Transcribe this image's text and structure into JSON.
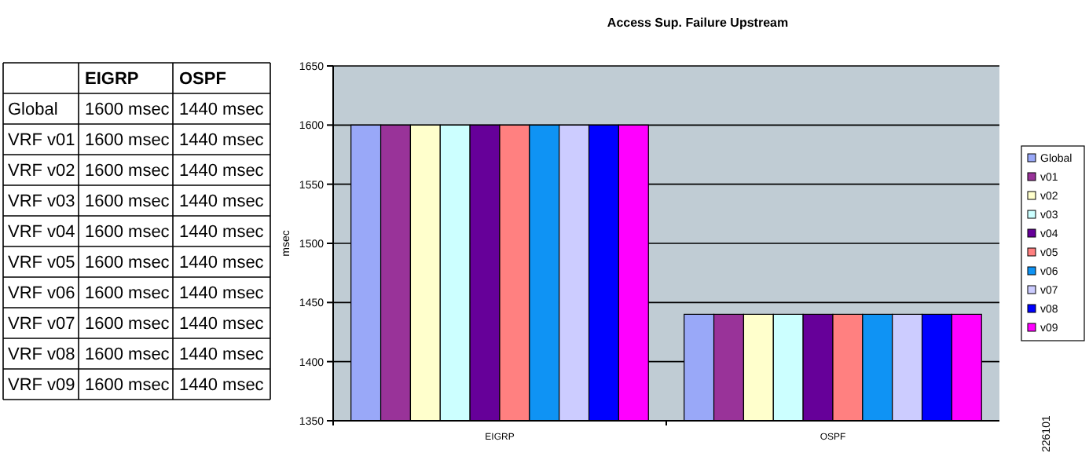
{
  "chart_data": [
    {
      "type": "other",
      "categories": [
        "EIGRP",
        "OSPF"
      ],
      "y_categories": [
        "Global",
        "VRF v01",
        "VRF v02",
        "VRF v03",
        "VRF v04",
        "VRF v05",
        "VRF v06",
        "VRF v07",
        "VRF v08",
        "VRF v09"
      ],
      "cell_labels": [
        [
          "1600 msec",
          "1440 msec"
        ],
        [
          "1600 msec",
          "1440 msec"
        ],
        [
          "1600 msec",
          "1440 msec"
        ],
        [
          "1600 msec",
          "1440 msec"
        ],
        [
          "1600 msec",
          "1440 msec"
        ],
        [
          "1600 msec",
          "1440 msec"
        ],
        [
          "1600 msec",
          "1440 msec"
        ],
        [
          "1600 msec",
          "1440 msec"
        ],
        [
          "1600 msec",
          "1440 msec"
        ],
        [
          "1600 msec",
          "1440 msec"
        ]
      ]
    },
    {
      "type": "bar",
      "title": "Access Sup. Failure Upstream",
      "ylabel": "msec",
      "categories": [
        "EIGRP",
        "OSPF"
      ],
      "series": [
        {
          "name": "Global",
          "color": "#99a8f8",
          "values": [
            1600,
            1440
          ]
        },
        {
          "name": "v01",
          "color": "#993399",
          "values": [
            1600,
            1440
          ]
        },
        {
          "name": "v02",
          "color": "#ffffcc",
          "values": [
            1600,
            1440
          ]
        },
        {
          "name": "v03",
          "color": "#ccffff",
          "values": [
            1600,
            1440
          ]
        },
        {
          "name": "v04",
          "color": "#660099",
          "values": [
            1600,
            1440
          ]
        },
        {
          "name": "v05",
          "color": "#ff8080",
          "values": [
            1600,
            1440
          ]
        },
        {
          "name": "v06",
          "color": "#0f93f4",
          "values": [
            1600,
            1440
          ]
        },
        {
          "name": "v07",
          "color": "#ccccff",
          "values": [
            1600,
            1440
          ]
        },
        {
          "name": "v08",
          "color": "#0000ff",
          "values": [
            1600,
            1440
          ]
        },
        {
          "name": "v09",
          "color": "#ff00ff",
          "values": [
            1600,
            1440
          ]
        }
      ],
      "ylim": [
        1350,
        1650
      ],
      "yticks": [
        1350,
        1400,
        1450,
        1500,
        1550,
        1600,
        1650
      ],
      "grid": "y",
      "legend": "right",
      "annotations": [
        "226101"
      ]
    }
  ]
}
